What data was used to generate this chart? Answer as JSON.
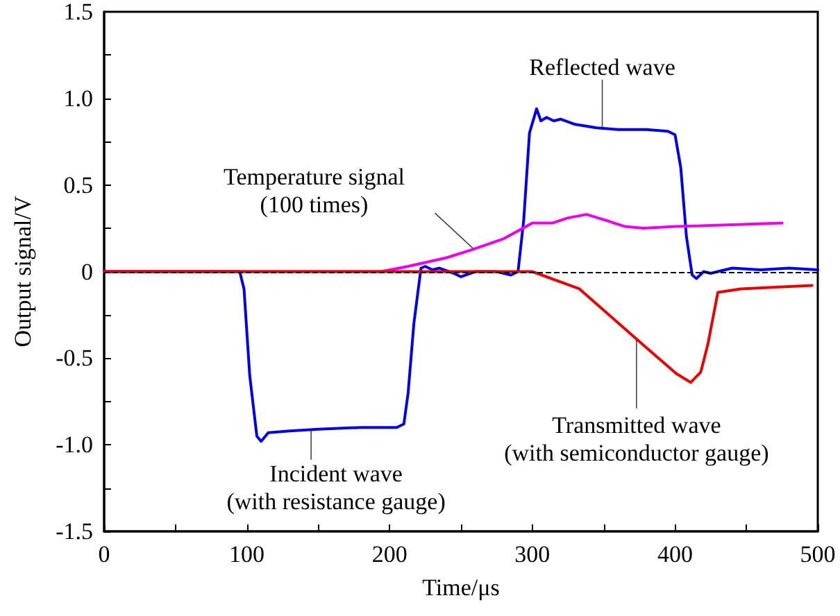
{
  "chart_data": {
    "type": "line",
    "xlabel": "Time/μs",
    "ylabel": "Output signal/V",
    "xlim": [
      0,
      500
    ],
    "xticks": [
      0,
      {
        "value": 50,
        "label": null
      },
      100,
      {
        "value": 150,
        "label": null
      },
      200,
      {
        "value": 250,
        "label": null
      },
      300,
      {
        "value": 350,
        "label": null
      },
      400,
      {
        "value": 450,
        "label": null
      },
      500
    ],
    "ylim": [
      -1.5,
      1.5
    ],
    "yticks": [
      {
        "value": -1.5,
        "label": "-1.5"
      },
      {
        "value": -1.25,
        "label": null
      },
      {
        "value": -1,
        "label": "-1.0"
      },
      {
        "value": -0.75,
        "label": null
      },
      {
        "value": -0.5,
        "label": "-0.5"
      },
      {
        "value": -0.25,
        "label": null
      },
      0,
      {
        "value": 0.25,
        "label": null
      },
      {
        "value": 0.5,
        "label": "0.5"
      },
      {
        "value": 0.75,
        "label": null
      },
      {
        "value": 1,
        "label": "1.0"
      },
      {
        "value": 1.25,
        "label": null
      },
      {
        "value": 1.5,
        "label": "1.5"
      }
    ],
    "grid": false,
    "marker": "none",
    "line_style": "solid",
    "ref_lines": [
      {
        "axis": "y",
        "value": 0,
        "label": null,
        "color": "#000000",
        "line_style": "dashed"
      }
    ],
    "series": [
      {
        "color": "#0000ee",
        "x": [
          0,
          95,
          98,
          102,
          107,
          110,
          115,
          130,
          150,
          180,
          205,
          210,
          213,
          217,
          222,
          225,
          230,
          235,
          245,
          250,
          260,
          275,
          285,
          290,
          294,
          298,
          303,
          306,
          310,
          315,
          320,
          330,
          345,
          360,
          380,
          395,
          400,
          404,
          408,
          412,
          415,
          420,
          425,
          440,
          460,
          480,
          500
        ],
        "values": [
          0,
          0,
          -0.1,
          -0.6,
          -0.95,
          -0.98,
          -0.93,
          -0.92,
          -0.91,
          -0.9,
          -0.9,
          -0.88,
          -0.7,
          -0.3,
          0.02,
          0.03,
          0.01,
          0.02,
          -0.01,
          -0.03,
          0,
          0,
          -0.02,
          0,
          0.3,
          0.8,
          0.94,
          0.87,
          0.89,
          0.87,
          0.88,
          0.85,
          0.83,
          0.82,
          0.82,
          0.81,
          0.79,
          0.6,
          0.2,
          -0.02,
          -0.04,
          0,
          -0.01,
          0.02,
          0.01,
          0.02,
          0.01
        ]
      },
      {
        "color": "#ee00ee",
        "x": [
          0,
          194,
          213,
          240,
          259,
          280,
          300,
          314,
          325,
          338,
          350,
          365,
          378,
          400,
          440,
          475
        ],
        "values": [
          0,
          0,
          0.03,
          0.08,
          0.13,
          0.19,
          0.28,
          0.28,
          0.31,
          0.33,
          0.3,
          0.26,
          0.25,
          0.26,
          0.27,
          0.28
        ]
      },
      {
        "color": "#ee0000",
        "x": [
          0,
          300,
          333,
          373,
          401,
          411,
          418,
          423,
          430,
          446,
          470,
          496
        ],
        "values": [
          0,
          0,
          -0.1,
          -0.39,
          -0.59,
          -0.64,
          -0.58,
          -0.42,
          -0.12,
          -0.1,
          -0.09,
          -0.08
        ]
      }
    ],
    "annotations": [
      {
        "text": "Temperature signal\n(100 times)",
        "x": 259,
        "y": 0.13
      },
      {
        "text": "Reflected wave",
        "x": 349,
        "y": 0.82
      },
      {
        "text": "Incident wave\n(with resistance gauge)",
        "x": 145,
        "y": -0.91
      },
      {
        "text": "Transmitted wave\n(with semiconductor gauge)",
        "x": 373,
        "y": -0.39
      }
    ]
  }
}
